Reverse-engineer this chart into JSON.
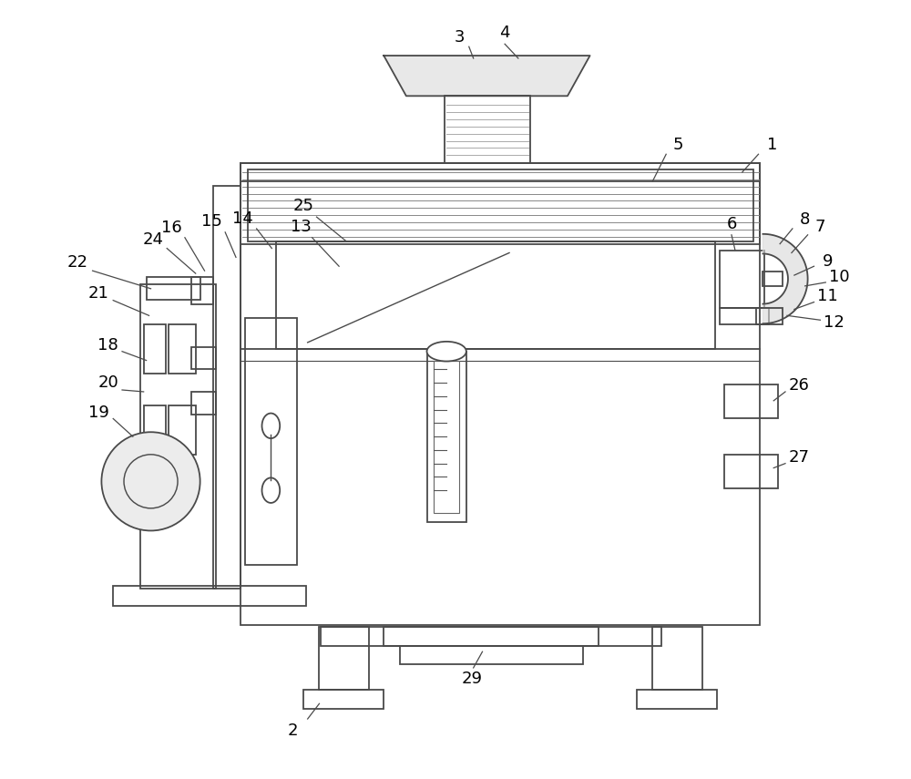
{
  "bg_color": "#ffffff",
  "line_color": "#4a4a4a",
  "lw": 1.3,
  "fig_width": 10.0,
  "fig_height": 8.55
}
